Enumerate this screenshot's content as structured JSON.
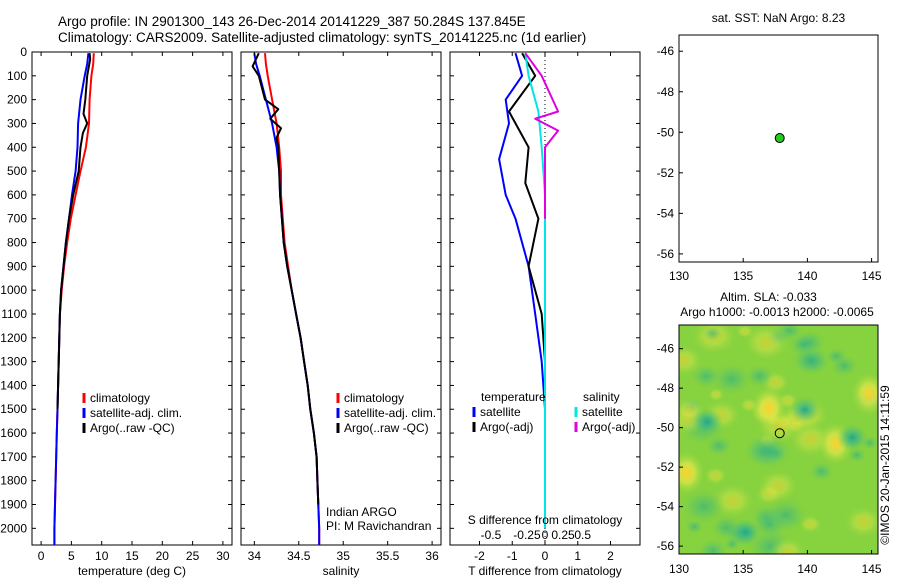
{
  "header": {
    "title_line1": "Argo profile: IN 2901300_143 26-Dec-2014 20141229_387 50.284S 137.845E",
    "title_line2": "Climatology: CARS2009. Satellite-adjusted climatology: synTS_20141225.nc (1d earlier)"
  },
  "colors": {
    "climatology": "#ff0000",
    "satellite": "#0000ff",
    "argo": "#000000",
    "salinity_satellite": "#00e5e5",
    "salinity_argo": "#e000e0",
    "marker": "#22cc22"
  },
  "chart_data": [
    {
      "type": "line",
      "id": "temperature",
      "xlabel": "temperature (deg C)",
      "ylabel": "",
      "xlim": [
        -1.5,
        31.5
      ],
      "ylim": [
        2070,
        0
      ],
      "xticks": [
        "0",
        "5",
        "10",
        "15",
        "20",
        "25",
        "30"
      ],
      "yticks": [
        "0",
        "100",
        "200",
        "300",
        "400",
        "500",
        "600",
        "700",
        "800",
        "900",
        "1000",
        "1100",
        "1200",
        "1300",
        "1400",
        "1500",
        "1600",
        "1700",
        "1800",
        "1900",
        "2000"
      ],
      "legend": [
        "climatology",
        "satellite-adj. clim.",
        "Argo(..raw -QC)"
      ],
      "legend_position": "lower-center",
      "series": [
        {
          "name": "climatology",
          "color": "#ff0000",
          "points": [
            [
              8.7,
              5
            ],
            [
              8.6,
              50
            ],
            [
              8.3,
              100
            ],
            [
              8.0,
              200
            ],
            [
              7.9,
              300
            ],
            [
              7.4,
              400
            ],
            [
              6.5,
              500
            ],
            [
              5.7,
              600
            ],
            [
              4.9,
              700
            ],
            [
              4.3,
              800
            ],
            [
              3.8,
              900
            ],
            [
              3.4,
              1000
            ],
            [
              3.1,
              1100
            ],
            [
              3.0,
              1200
            ],
            [
              2.9,
              1300
            ],
            [
              2.8,
              1400
            ],
            [
              2.7,
              1500
            ],
            [
              2.6,
              1600
            ],
            [
              2.5,
              1700
            ],
            [
              2.4,
              1800
            ],
            [
              2.3,
              1900
            ],
            [
              2.2,
              2000
            ],
            [
              2.2,
              2070
            ]
          ]
        },
        {
          "name": "satellite-adj. clim.",
          "color": "#0000ff",
          "points": [
            [
              7.8,
              5
            ],
            [
              7.6,
              50
            ],
            [
              7.2,
              100
            ],
            [
              6.5,
              200
            ],
            [
              6.1,
              300
            ],
            [
              6.0,
              400
            ],
            [
              5.7,
              500
            ],
            [
              5.1,
              600
            ],
            [
              4.6,
              700
            ],
            [
              4.1,
              800
            ],
            [
              3.7,
              900
            ],
            [
              3.3,
              1000
            ],
            [
              3.1,
              1100
            ],
            [
              3.0,
              1200
            ],
            [
              2.9,
              1300
            ],
            [
              2.8,
              1400
            ],
            [
              2.7,
              1500
            ],
            [
              2.6,
              1600
            ],
            [
              2.5,
              1700
            ],
            [
              2.4,
              1800
            ],
            [
              2.3,
              1900
            ],
            [
              2.2,
              2000
            ],
            [
              2.2,
              2070
            ]
          ]
        },
        {
          "name": "Argo(..raw -QC)",
          "color": "#000000",
          "points": [
            [
              8.0,
              5
            ],
            [
              8.1,
              30
            ],
            [
              7.6,
              100
            ],
            [
              7.3,
              200
            ],
            [
              7.0,
              260
            ],
            [
              7.6,
              300
            ],
            [
              6.9,
              340
            ],
            [
              6.5,
              400
            ],
            [
              6.2,
              500
            ],
            [
              5.3,
              600
            ],
            [
              4.6,
              700
            ],
            [
              4.1,
              800
            ],
            [
              3.7,
              900
            ],
            [
              3.3,
              1000
            ],
            [
              3.1,
              1100
            ],
            [
              3.0,
              1200
            ],
            [
              2.9,
              1300
            ],
            [
              2.8,
              1400
            ],
            [
              2.7,
              1500
            ]
          ]
        }
      ]
    },
    {
      "type": "line",
      "id": "salinity",
      "xlabel": "salinity",
      "xlim": [
        33.85,
        36.1
      ],
      "ylim": [
        2070,
        0
      ],
      "xticks": [
        "34",
        "34.5",
        "35",
        "35.5",
        "36"
      ],
      "legend": [
        "climatology",
        "satellite-adj. clim.",
        "Argo(..raw -QC)"
      ],
      "legend_position": "lower-right",
      "annotations": [
        "Indian ARGO",
        "PI: M Ravichandran"
      ],
      "series": [
        {
          "name": "climatology",
          "color": "#ff0000",
          "points": [
            [
              34.12,
              5
            ],
            [
              34.13,
              50
            ],
            [
              34.15,
              100
            ],
            [
              34.2,
              200
            ],
            [
              34.25,
              300
            ],
            [
              34.28,
              400
            ],
            [
              34.3,
              500
            ],
            [
              34.3,
              600
            ],
            [
              34.32,
              700
            ],
            [
              34.34,
              800
            ],
            [
              34.38,
              900
            ],
            [
              34.42,
              1000
            ],
            [
              34.47,
              1100
            ],
            [
              34.52,
              1200
            ],
            [
              34.56,
              1300
            ],
            [
              34.6,
              1400
            ],
            [
              34.63,
              1500
            ],
            [
              34.67,
              1600
            ],
            [
              34.7,
              1700
            ],
            [
              34.71,
              1800
            ],
            [
              34.72,
              1900
            ],
            [
              34.73,
              2000
            ],
            [
              34.73,
              2070
            ]
          ]
        },
        {
          "name": "satellite-adj. clim.",
          "color": "#0000ff",
          "points": [
            [
              34.0,
              5
            ],
            [
              34.02,
              50
            ],
            [
              34.06,
              100
            ],
            [
              34.13,
              200
            ],
            [
              34.2,
              300
            ],
            [
              34.25,
              400
            ],
            [
              34.28,
              500
            ],
            [
              34.29,
              600
            ],
            [
              34.31,
              700
            ],
            [
              34.33,
              800
            ],
            [
              34.37,
              900
            ],
            [
              34.42,
              1000
            ],
            [
              34.47,
              1100
            ],
            [
              34.52,
              1200
            ],
            [
              34.56,
              1300
            ],
            [
              34.6,
              1400
            ],
            [
              34.63,
              1500
            ],
            [
              34.67,
              1600
            ],
            [
              34.7,
              1700
            ],
            [
              34.71,
              1800
            ],
            [
              34.72,
              1900
            ],
            [
              34.73,
              2000
            ],
            [
              34.73,
              2070
            ]
          ]
        },
        {
          "name": "Argo(..raw -QC)",
          "color": "#000000",
          "points": [
            [
              34.05,
              5
            ],
            [
              33.98,
              60
            ],
            [
              34.05,
              100
            ],
            [
              34.12,
              200
            ],
            [
              34.27,
              240
            ],
            [
              34.18,
              280
            ],
            [
              34.3,
              320
            ],
            [
              34.25,
              360
            ],
            [
              34.27,
              400
            ],
            [
              34.28,
              500
            ],
            [
              34.29,
              600
            ],
            [
              34.31,
              700
            ],
            [
              34.33,
              800
            ],
            [
              34.37,
              900
            ],
            [
              34.42,
              1000
            ],
            [
              34.47,
              1100
            ],
            [
              34.52,
              1200
            ],
            [
              34.56,
              1300
            ],
            [
              34.6,
              1400
            ],
            [
              34.63,
              1500
            ],
            [
              34.67,
              1600
            ],
            [
              34.7,
              1700
            ],
            [
              34.71,
              1800
            ],
            [
              34.72,
              1900
            ]
          ]
        }
      ]
    },
    {
      "type": "line",
      "id": "differences",
      "xlabel": "T difference from climatology",
      "top_label": "S difference from climatology",
      "xlim": [
        -2.9,
        2.9
      ],
      "ylim": [
        2070,
        0
      ],
      "xticks": [
        "-2",
        "-1",
        "0",
        "1",
        "2"
      ],
      "s_xticks": [
        "-0.5",
        "-0.25",
        "0",
        "0.25",
        "0.5"
      ],
      "legend_temperature": [
        "temperature",
        "satellite",
        "Argo(-adj)"
      ],
      "legend_salinity": [
        "salinity",
        "satellite",
        "Argo(-adj)"
      ],
      "series": [
        {
          "name": "satellite",
          "group": "temperature",
          "color": "#0000ff",
          "points": [
            [
              -0.9,
              5
            ],
            [
              -0.7,
              100
            ],
            [
              -1.2,
              200
            ],
            [
              -1.1,
              300
            ],
            [
              -1.4,
              450
            ],
            [
              -1.2,
              600
            ],
            [
              -0.9,
              700
            ],
            [
              -0.5,
              900
            ],
            [
              -0.3,
              1100
            ],
            [
              -0.1,
              1300
            ],
            [
              0,
              1500
            ],
            [
              0,
              2000
            ]
          ]
        },
        {
          "name": "Argo(-adj)",
          "group": "temperature",
          "color": "#000000",
          "points": [
            [
              -0.7,
              5
            ],
            [
              -0.3,
              100
            ],
            [
              -1.1,
              250
            ],
            [
              -0.5,
              400
            ],
            [
              -0.6,
              550
            ],
            [
              -0.2,
              700
            ],
            [
              -0.5,
              900
            ],
            [
              -0.1,
              1100
            ],
            [
              0,
              1300
            ],
            [
              0,
              1500
            ]
          ]
        },
        {
          "name": "satellite",
          "group": "salinity",
          "color": "#00e5e5",
          "points": [
            [
              -0.6,
              5
            ],
            [
              -0.5,
              100
            ],
            [
              -0.2,
              250
            ],
            [
              -0.1,
              400
            ],
            [
              0,
              600
            ],
            [
              0,
              800
            ],
            [
              0,
              1200
            ],
            [
              0,
              1600
            ],
            [
              0,
              2000
            ]
          ]
        },
        {
          "name": "Argo(-adj)",
          "group": "salinity",
          "color": "#e000e0",
          "points": [
            [
              -0.6,
              5
            ],
            [
              -0.1,
              100
            ],
            [
              0.4,
              250
            ],
            [
              -0.3,
              280
            ],
            [
              0.4,
              330
            ],
            [
              0,
              400
            ],
            [
              0,
              500
            ],
            [
              0,
              700
            ]
          ]
        }
      ]
    },
    {
      "type": "scatter",
      "id": "position",
      "title": "sat. SST: NaN Argo: 8.23",
      "xlim": [
        130,
        145.5
      ],
      "ylim": [
        -56.4,
        -45.2
      ],
      "xticks": [
        "130",
        "135",
        "140",
        "145"
      ],
      "yticks": [
        "-46",
        "-48",
        "-50",
        "-52",
        "-54",
        "-56"
      ],
      "points": [
        [
          137.845,
          -50.284
        ]
      ]
    },
    {
      "type": "heatmap",
      "id": "sla",
      "title_line1": "Altim. SLA: -0.033",
      "title_line2": "Argo h1000: -0.0013 h2000: -0.0065",
      "xlim": [
        130,
        145.5
      ],
      "ylim": [
        -56.4,
        -44.8
      ],
      "xticks": [
        "130",
        "135",
        "140",
        "145"
      ],
      "yticks": [
        "-46",
        "-48",
        "-50",
        "-52",
        "-54",
        "-56"
      ],
      "marker": [
        137.845,
        -50.284
      ],
      "blobs": [
        {
          "x": 137.0,
          "y": -49.0,
          "sign": "high"
        },
        {
          "x": 142.2,
          "y": -50.8,
          "sign": "high"
        },
        {
          "x": 130.6,
          "y": -52.3,
          "sign": "high"
        },
        {
          "x": 144.8,
          "y": -48.3,
          "sign": "high"
        },
        {
          "x": 132.2,
          "y": -49.7,
          "sign": "low"
        },
        {
          "x": 139.8,
          "y": -49.1,
          "sign": "low"
        },
        {
          "x": 143.5,
          "y": -50.5,
          "sign": "low"
        },
        {
          "x": 135.2,
          "y": -55.3,
          "sign": "low"
        }
      ]
    }
  ],
  "credit": "©IMOS 20-Jan-2015 14:11:59"
}
